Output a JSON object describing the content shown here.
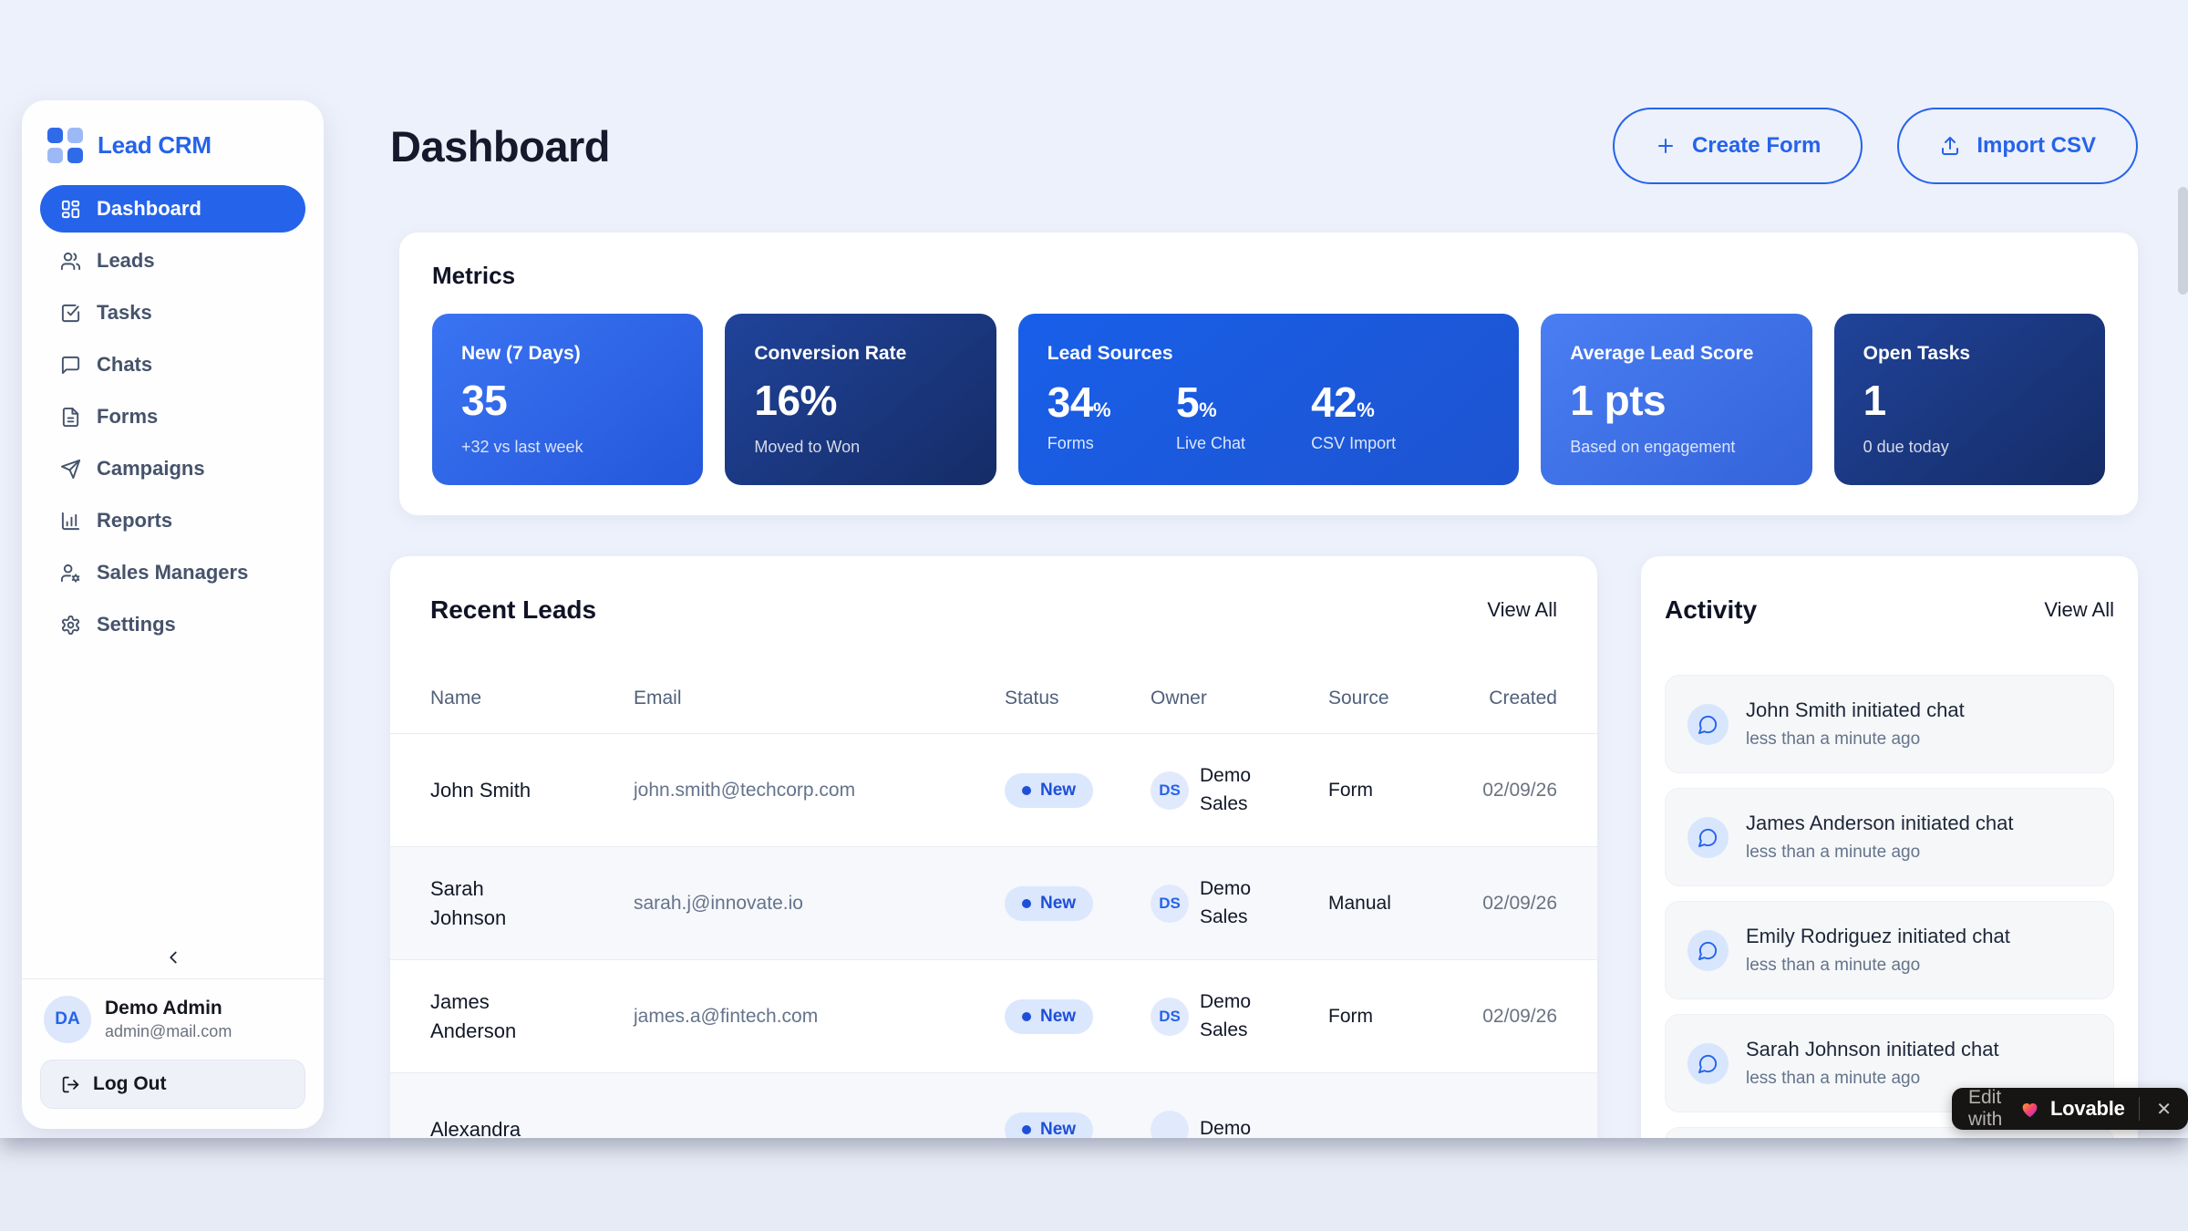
{
  "app": {
    "brand": "Lead CRM"
  },
  "colors": {
    "accent": "#2563eb",
    "card_bright": "#2f6aec",
    "card_navy": "#1b3a88",
    "badge_bg": "#dbe7fd",
    "badge_text": "#1d4fd8",
    "page_bg": "#edf1fb"
  },
  "sidebar": {
    "items": [
      {
        "label": "Dashboard",
        "icon": "dashboard",
        "active": true
      },
      {
        "label": "Leads",
        "icon": "users",
        "active": false
      },
      {
        "label": "Tasks",
        "icon": "check-square",
        "active": false
      },
      {
        "label": "Chats",
        "icon": "chat",
        "active": false
      },
      {
        "label": "Forms",
        "icon": "file",
        "active": false
      },
      {
        "label": "Campaigns",
        "icon": "send",
        "active": false
      },
      {
        "label": "Reports",
        "icon": "chart",
        "active": false
      },
      {
        "label": "Sales Managers",
        "icon": "user-gear",
        "active": false
      },
      {
        "label": "Settings",
        "icon": "gear",
        "active": false
      }
    ],
    "user": {
      "initials": "DA",
      "name": "Demo Admin",
      "email": "admin@mail.com"
    },
    "logout_label": "Log Out"
  },
  "header": {
    "title": "Dashboard",
    "create_form_label": "Create Form",
    "import_csv_label": "Import CSV"
  },
  "metrics": {
    "heading": "Metrics",
    "cards": [
      {
        "variant": "bright",
        "title": "New (7 Days)",
        "value": "35",
        "subtext": "+32 vs last week"
      },
      {
        "variant": "navy",
        "title": "Conversion Rate",
        "value": "16%",
        "subtext": "Moved to Won"
      },
      {
        "variant": "deep wide",
        "title": "Lead Sources",
        "stats": [
          {
            "value": "34",
            "unit": "%",
            "label": "Forms"
          },
          {
            "value": "5",
            "unit": "%",
            "label": "Live Chat"
          },
          {
            "value": "42",
            "unit": "%",
            "label": "CSV Import"
          }
        ]
      },
      {
        "variant": "light",
        "title": "Average Lead Score",
        "value": "1 pts",
        "subtext": "Based on engagement"
      },
      {
        "variant": "navy",
        "title": "Open Tasks",
        "value": "1",
        "subtext": "0 due today"
      }
    ]
  },
  "recent_leads": {
    "heading": "Recent Leads",
    "view_all": "View All",
    "columns": [
      "Name",
      "Email",
      "Status",
      "Owner",
      "Source",
      "Created"
    ],
    "rows": [
      {
        "name": "John Smith",
        "email": "john.smith@techcorp.com",
        "status": "New",
        "owner_initials": "DS",
        "owner": "Demo Sales",
        "source": "Form",
        "created": "02/09/26"
      },
      {
        "name": "Sarah Johnson",
        "email": "sarah.j@innovate.io",
        "status": "New",
        "owner_initials": "DS",
        "owner": "Demo Sales",
        "source": "Manual",
        "created": "02/09/26"
      },
      {
        "name": "James Anderson",
        "email": "james.a@fintech.com",
        "status": "New",
        "owner_initials": "DS",
        "owner": "Demo Sales",
        "source": "Form",
        "created": "02/09/26"
      },
      {
        "name": "Alexandra",
        "email": "",
        "status": "New",
        "owner_initials": "",
        "owner": "Demo",
        "source": "",
        "created": ""
      }
    ]
  },
  "activity": {
    "heading": "Activity",
    "view_all": "View All",
    "items": [
      {
        "title": "John Smith initiated chat",
        "time": "less than a minute ago"
      },
      {
        "title": "James Anderson initiated chat",
        "time": "less than a minute ago"
      },
      {
        "title": "Emily Rodriguez initiated chat",
        "time": "less than a minute ago"
      },
      {
        "title": "Sarah Johnson initiated chat",
        "time": "less than a minute ago"
      }
    ],
    "has_partial_fifth": true
  },
  "lovable_badge": {
    "prefix": "Edit with",
    "brand": "Lovable",
    "close": "✕"
  }
}
